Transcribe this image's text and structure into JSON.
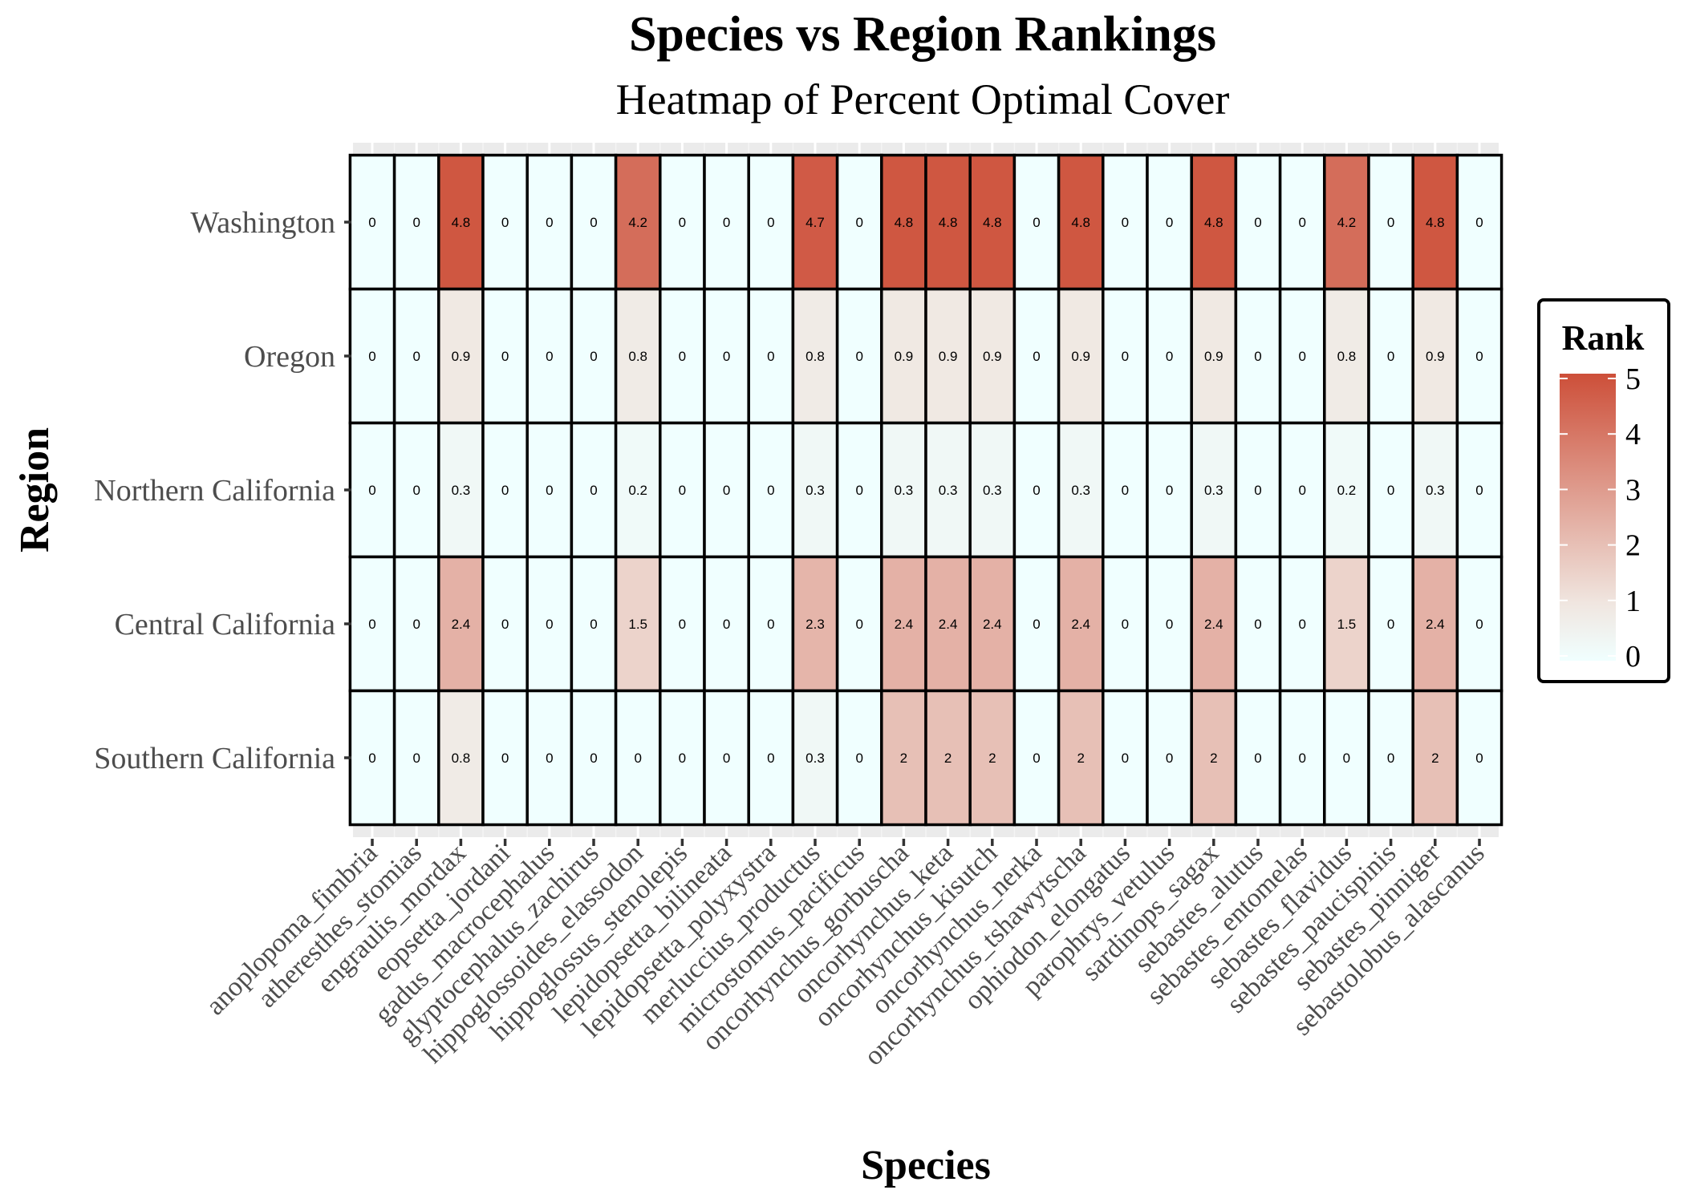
{
  "chart_data": {
    "type": "heatmap",
    "title": "Species vs Region Rankings",
    "subtitle": "Heatmap of Percent Optimal Cover",
    "xlabel": "Species",
    "ylabel": "Region",
    "x_categories": [
      "anoplopoma_fimbria",
      "atheresthes_stomias",
      "engraulis_mordax",
      "eopsetta_jordani",
      "gadus_macrocephalus",
      "glyptocephalus_zachirus",
      "hippoglossoides_elassodon",
      "hippoglossus_stenolepis",
      "lepidopsetta_bilineata",
      "lepidopsetta_polyxystra",
      "merluccius_productus",
      "microstomus_pacificus",
      "oncorhynchus_gorbuscha",
      "oncorhynchus_keta",
      "oncorhynchus_kisutch",
      "oncorhynchus_nerka",
      "oncorhynchus_tshawytscha",
      "ophiodon_elongatus",
      "parophrys_vetulus",
      "sardinops_sagax",
      "sebastes_alutus",
      "sebastes_entomelas",
      "sebastes_flavidus",
      "sebastes_paucispinis",
      "sebastes_pinniger",
      "sebastolobus_alascanus"
    ],
    "y_categories": [
      "Washington",
      "Oregon",
      "Northern California",
      "Central California",
      "Southern California"
    ],
    "values": [
      [
        0,
        0,
        4.8,
        0,
        0,
        0,
        4.2,
        0,
        0,
        0,
        4.7,
        0,
        4.8,
        4.8,
        4.8,
        0,
        4.8,
        0,
        0,
        4.8,
        0,
        0,
        4.2,
        0,
        4.8,
        0
      ],
      [
        0,
        0,
        0.9,
        0,
        0,
        0,
        0.8,
        0,
        0,
        0,
        0.8,
        0,
        0.9,
        0.9,
        0.9,
        0,
        0.9,
        0,
        0,
        0.9,
        0,
        0,
        0.8,
        0,
        0.9,
        0
      ],
      [
        0,
        0,
        0.3,
        0,
        0,
        0,
        0.2,
        0,
        0,
        0,
        0.3,
        0,
        0.3,
        0.3,
        0.3,
        0,
        0.3,
        0,
        0,
        0.3,
        0,
        0,
        0.2,
        0,
        0.3,
        0
      ],
      [
        0,
        0,
        2.4,
        0,
        0,
        0,
        1.5,
        0,
        0,
        0,
        2.3,
        0,
        2.4,
        2.4,
        2.4,
        0,
        2.4,
        0,
        0,
        2.4,
        0,
        0,
        1.5,
        0,
        2.4,
        0
      ],
      [
        0,
        0,
        0.8,
        0,
        0,
        0,
        0,
        0,
        0,
        0,
        0.3,
        0,
        2,
        2,
        2,
        0,
        2,
        0,
        0,
        2,
        0,
        0,
        0,
        0,
        2,
        0
      ]
    ],
    "legend": {
      "title": "Rank",
      "ticks": [
        "0",
        "1",
        "2",
        "3",
        "4",
        "5"
      ],
      "range": [
        0,
        5
      ],
      "placement": "right"
    },
    "color_scale": {
      "low": "#f0ffff",
      "mid": "#f0e6e0",
      "high": "#cd4f39"
    },
    "grid": true
  }
}
